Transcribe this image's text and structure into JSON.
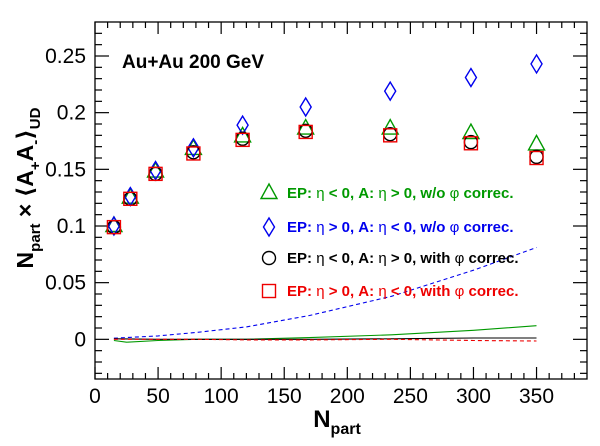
{
  "chart_data": {
    "type": "scatter",
    "annotation": "Au+Au 200 GeV",
    "xlabel": "N",
    "xlabel_sub": "part",
    "ylabel_text": "N",
    "ylabel_sub1": "part",
    "ylabel_mid": " × ⟨A",
    "ylabel_sub2": "+",
    "ylabel_a2": "A",
    "ylabel_sub3": "-",
    "ylabel_close": "⟩",
    "ylabel_sub4": "UD",
    "xlim": [
      0,
      390
    ],
    "ylim": [
      -0.035,
      0.28
    ],
    "xticks": [
      0,
      50,
      100,
      150,
      200,
      250,
      300,
      350
    ],
    "xtick_labels": [
      "0",
      "50",
      "100",
      "150",
      "200",
      "250",
      "300",
      "350"
    ],
    "yticks": [
      0,
      0.05,
      0.1,
      0.15,
      0.2,
      0.25
    ],
    "ytick_labels": [
      "0",
      "0.05",
      "0.1",
      "0.15",
      "0.2",
      "0.25"
    ],
    "x": [
      15,
      28,
      48,
      78,
      117,
      167,
      234,
      298,
      350
    ],
    "series": [
      {
        "name": "EP: η < 0, A: η > 0, w/o φ correc.",
        "marker": "triangle",
        "color": "#009900",
        "values": [
          0.1,
          0.125,
          0.148,
          0.168,
          0.179,
          0.186,
          0.186,
          0.182,
          0.172
        ]
      },
      {
        "name": "EP: η > 0, A: η < 0, w/o φ correc.",
        "marker": "diamond",
        "color": "#0000ee",
        "values": [
          0.1,
          0.126,
          0.149,
          0.169,
          0.189,
          0.205,
          0.219,
          0.231,
          0.243
        ]
      },
      {
        "name": "EP: η < 0, A: η > 0, with φ correc.",
        "marker": "circle",
        "color": "#000000",
        "values": [
          0.099,
          0.124,
          0.146,
          0.165,
          0.177,
          0.184,
          0.181,
          0.174,
          0.161
        ]
      },
      {
        "name": "EP: η > 0, A: η < 0, with φ correc.",
        "marker": "square",
        "color": "#ee0000",
        "values": [
          0.099,
          0.124,
          0.146,
          0.164,
          0.176,
          0.183,
          0.18,
          0.173,
          0.16
        ]
      }
    ],
    "curves": [
      {
        "color": "#0000ee",
        "style": "dashed",
        "x": [
          15,
          50,
          80,
          120,
          170,
          235,
          300,
          350
        ],
        "y": [
          0.001,
          0.003,
          0.006,
          0.011,
          0.021,
          0.038,
          0.061,
          0.081
        ]
      },
      {
        "color": "#009900",
        "style": "solid",
        "x": [
          15,
          25,
          50,
          80,
          120,
          170,
          235,
          300,
          350
        ],
        "y": [
          -0.001,
          -0.0025,
          -0.001,
          0.0,
          0.0,
          0.0015,
          0.004,
          0.008,
          0.012
        ]
      },
      {
        "color": "#000000",
        "style": "solid",
        "x": [
          15,
          50,
          80,
          120,
          170,
          235,
          300,
          350
        ],
        "y": [
          0.0005,
          0.0,
          0.0,
          0.0,
          0.0,
          0.0005,
          0.0012,
          0.0012
        ]
      },
      {
        "color": "#ee0000",
        "style": "dashed",
        "x": [
          15,
          50,
          80,
          120,
          170,
          235,
          300,
          350
        ],
        "y": [
          0.0,
          0.0,
          0.0,
          -0.0005,
          -0.0005,
          0.0,
          -0.001,
          -0.0015
        ]
      }
    ],
    "legend": [
      {
        "marker": "triangle",
        "color": "#009900",
        "pre": "EP: ",
        "eta1": "η",
        "mid1": " < 0, A: ",
        "eta2": "η",
        "mid2": " > 0, w/o ",
        "phi": "φ",
        "post": " correc."
      },
      {
        "marker": "diamond",
        "color": "#0000ee",
        "pre": "EP: ",
        "eta1": "η",
        "mid1": " > 0, A: ",
        "eta2": "η",
        "mid2": " < 0, w/o ",
        "phi": "φ",
        "post": " correc."
      },
      {
        "marker": "circle",
        "color": "#000000",
        "pre": "EP: ",
        "eta1": "η",
        "mid1": " < 0, A: ",
        "eta2": "η",
        "mid2": " > 0, with ",
        "phi": "φ",
        "post": " correc."
      },
      {
        "marker": "square",
        "color": "#ee0000",
        "pre": "EP: ",
        "eta1": "η",
        "mid1": " > 0, A: ",
        "eta2": "η",
        "mid2": " < 0, with ",
        "phi": "φ",
        "post": " correc."
      }
    ],
    "legend_position": "right",
    "grid": false
  }
}
